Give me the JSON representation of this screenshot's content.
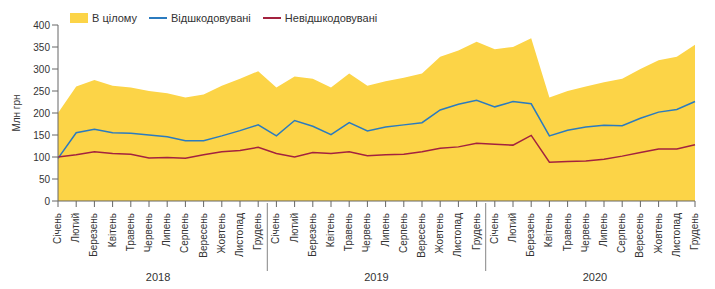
{
  "chart_data": {
    "type": "area",
    "y_label": "Млн грн",
    "categories": [
      "Січень",
      "Лютий",
      "Березень",
      "Квітень",
      "Травень",
      "Червень",
      "Липень",
      "Серпень",
      "Вересень",
      "Жовтень",
      "Листопад",
      "Грудень",
      "Січень",
      "Лютий",
      "Березень",
      "Квітень",
      "Травень",
      "Червень",
      "Липень",
      "Серпень",
      "Вересень",
      "Жовтень",
      "Листопад",
      "Грудень",
      "Січень",
      "Лютий",
      "Березень",
      "Квітень",
      "Травень",
      "Червень",
      "Липень",
      "Серпень",
      "Вересень",
      "Жовтень",
      "Листопад",
      "Грудень"
    ],
    "years": [
      "2018",
      "2019",
      "2020"
    ],
    "series": [
      {
        "name": "В цілому",
        "type": "area",
        "color": "#fcd447",
        "values": [
          200,
          260,
          275,
          262,
          258,
          250,
          245,
          235,
          242,
          262,
          278,
          295,
          258,
          283,
          278,
          258,
          290,
          262,
          272,
          280,
          290,
          328,
          342,
          362,
          345,
          350,
          370,
          235,
          250,
          260,
          270,
          278,
          300,
          320,
          328,
          355
        ]
      },
      {
        "name": "Відшкодовувані",
        "type": "line",
        "color": "#2b7bbf",
        "values": [
          97,
          155,
          163,
          155,
          154,
          150,
          146,
          137,
          137,
          148,
          160,
          173,
          148,
          183,
          170,
          151,
          178,
          159,
          168,
          173,
          178,
          207,
          220,
          229,
          214,
          226,
          221,
          148,
          161,
          168,
          172,
          171,
          188,
          202,
          208,
          226
        ]
      },
      {
        "name": "Невідшкодовувані",
        "type": "line",
        "color": "#a3223f",
        "values": [
          100,
          105,
          112,
          108,
          106,
          98,
          99,
          97,
          105,
          112,
          115,
          122,
          108,
          100,
          110,
          108,
          112,
          103,
          105,
          106,
          112,
          120,
          123,
          131,
          129,
          127,
          149,
          88,
          90,
          91,
          95,
          102,
          110,
          118,
          118,
          128
        ]
      }
    ],
    "ylim": [
      0,
      400
    ],
    "yticks": [
      0,
      50,
      100,
      150,
      200,
      250,
      300,
      350,
      400
    ],
    "grid": false,
    "legend": "top-left"
  }
}
